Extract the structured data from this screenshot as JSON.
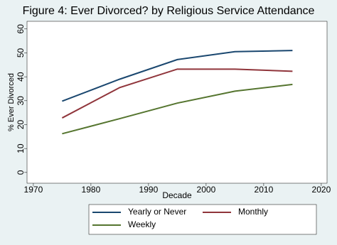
{
  "chart_data": {
    "type": "line",
    "title": "Figure 4: Ever Divorced? by Religious Service Attendance",
    "x_label": "Decade",
    "y_label": "% Ever Divorced",
    "x": [
      1975,
      1985,
      1995,
      2005,
      2015
    ],
    "series": [
      {
        "name": "Yearly or Never",
        "color": "#1a476f",
        "values": [
          29.8,
          39,
          47.2,
          50.5,
          51
        ]
      },
      {
        "name": "Monthly",
        "color": "#90353b",
        "values": [
          22.8,
          35.5,
          43.2,
          43.2,
          42.3
        ]
      },
      {
        "name": "Weekly",
        "color": "#55752f",
        "values": [
          16.2,
          22.5,
          29,
          34,
          36.8
        ]
      }
    ],
    "xlim": [
      1968.9,
      2021
    ],
    "xticks": [
      1970,
      1980,
      1990,
      2000,
      2010,
      2020
    ],
    "ylim": [
      -4.5,
      63.2
    ],
    "yticks": [
      0,
      10,
      20,
      30,
      40,
      50,
      60
    ],
    "grid": false,
    "legend_position": "bottom"
  }
}
